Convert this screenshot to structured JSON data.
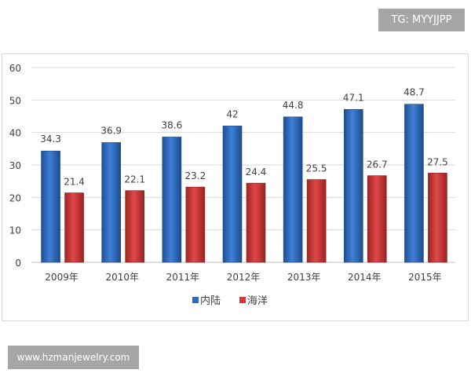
{
  "watermark_top": "TG: MYYJJPP",
  "watermark_bottom": "www.hzmanjewelry.com",
  "chart_data": {
    "type": "bar",
    "title": "",
    "xlabel": "",
    "ylabel": "",
    "categories": [
      "2009年",
      "2010年",
      "2011年",
      "2012年",
      "2013年",
      "2014年",
      "2015年"
    ],
    "series": [
      {
        "name": "内陆",
        "color": "#2e6bc0",
        "values": [
          34.3,
          36.9,
          38.6,
          42,
          44.8,
          47.1,
          48.7
        ]
      },
      {
        "name": "海洋",
        "color": "#d23a3a",
        "values": [
          21.4,
          22.1,
          23.2,
          24.4,
          25.5,
          26.7,
          27.5
        ]
      }
    ],
    "ylim": [
      0,
      60
    ],
    "yticks": [
      0,
      10,
      20,
      30,
      40,
      50,
      60
    ],
    "grid": true,
    "legend": "bottom"
  }
}
